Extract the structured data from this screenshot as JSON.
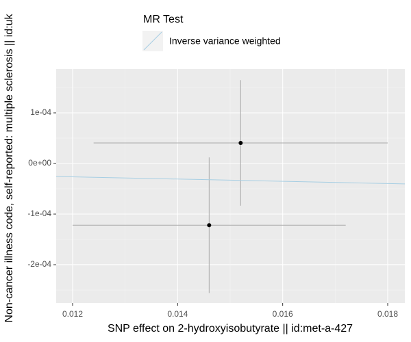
{
  "chart_data": {
    "type": "scatter",
    "legend_title": "MR Test",
    "x_label": "SNP effect on 2-hydroxyisobutyrate || id:met-a-427",
    "y_label": "Non-cancer illness code, self-reported: multiple sclerosis || id:uk",
    "xlim": [
      0.011687,
      0.018326
    ],
    "ylim": [
      -0.0002757,
      0.0001865
    ],
    "xticks": [
      0.012,
      0.014,
      0.016,
      0.018
    ],
    "yticks": [
      {
        "value": -0.0002,
        "label": "-2e-04"
      },
      {
        "value": -0.0001,
        "label": "-1e-04"
      },
      {
        "value": 0,
        "label": "0e+00"
      },
      {
        "value": 0.0001,
        "label": "1e-04"
      }
    ],
    "grid": true,
    "points": {
      "color": "#000000",
      "errorbar_color": "#a9a9a9",
      "x": [
        0.0152,
        0.0146
      ],
      "values": [
        4.05e-05,
        -0.000122
      ],
      "x_err": [
        0.0028,
        0.0026
      ],
      "y_err": [
        0.000124,
        0.000134
      ]
    },
    "series": [
      {
        "name": "Inverse variance weighted",
        "color": "#a6cee3",
        "slope": -0.0022
      }
    ]
  }
}
